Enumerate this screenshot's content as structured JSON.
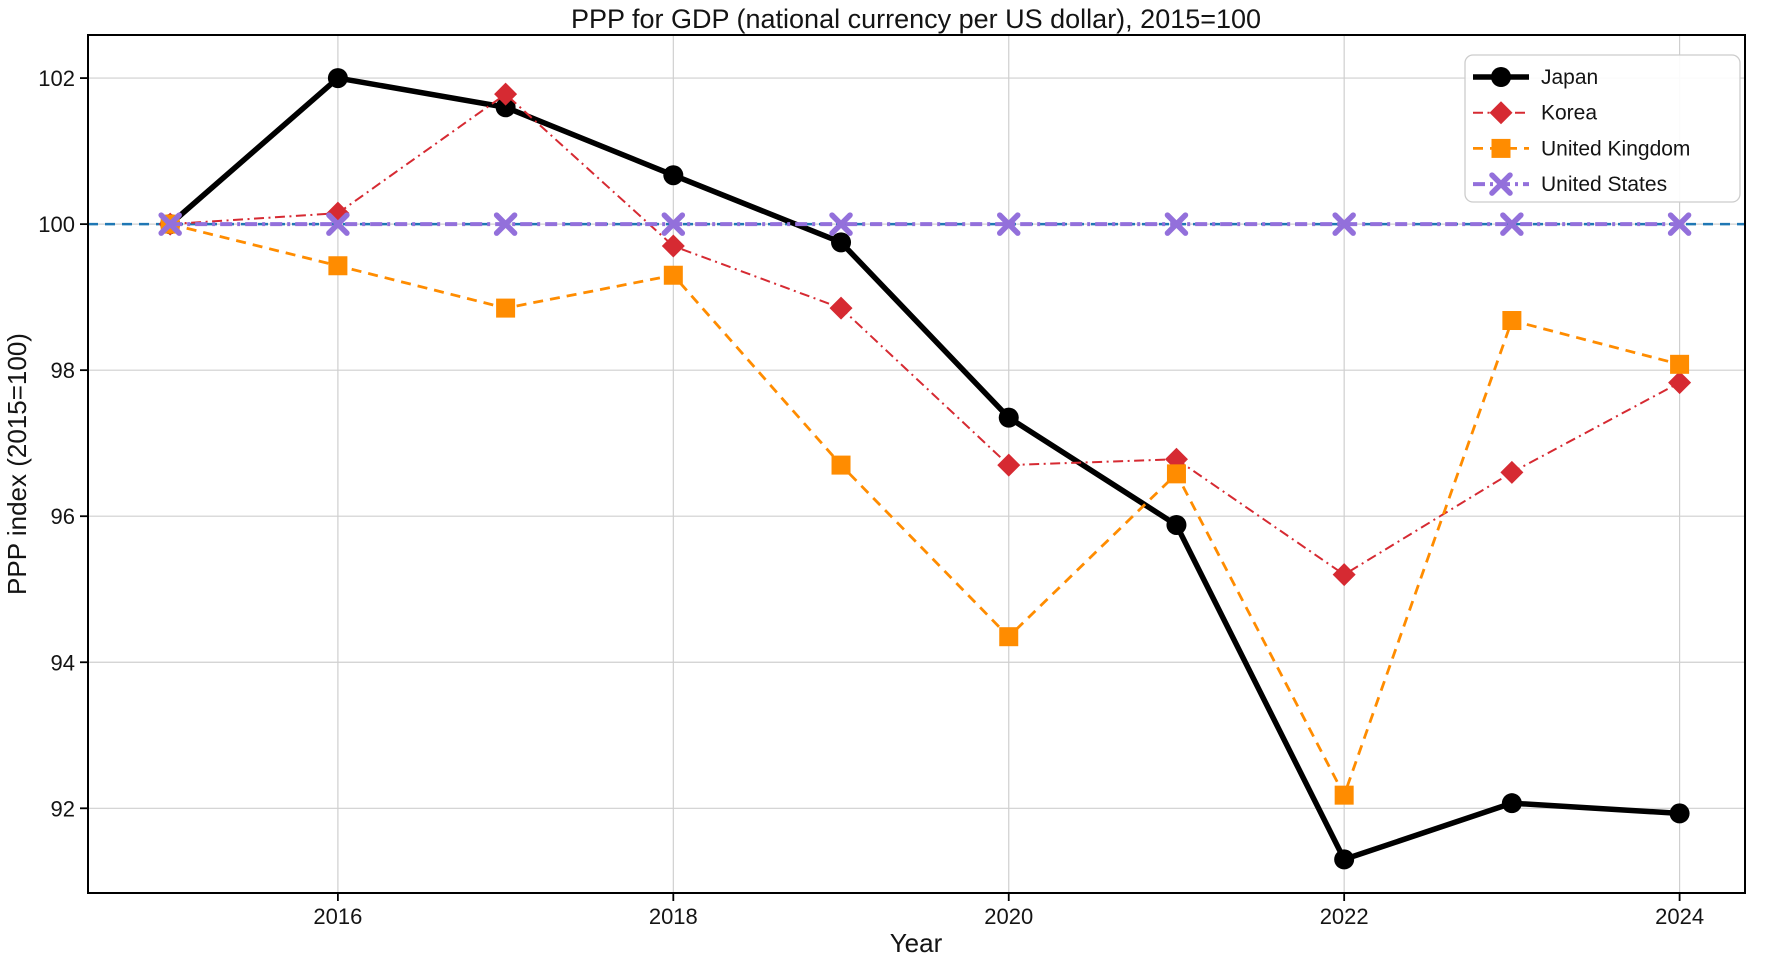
{
  "chart_data": {
    "type": "line",
    "title": "PPP for GDP (national currency per US dollar), 2015=100",
    "xlabel": "Year",
    "ylabel": "PPP index (2015=100)",
    "x": [
      2015,
      2016,
      2017,
      2018,
      2019,
      2020,
      2021,
      2022,
      2023,
      2024
    ],
    "series": [
      {
        "name": "Japan",
        "color": "#000000",
        "linestyle": "solid",
        "linewidth": 5.5,
        "marker": "circle",
        "values": [
          100.0,
          102.0,
          101.6,
          100.67,
          99.75,
          97.35,
          95.88,
          91.3,
          92.07,
          91.93
        ]
      },
      {
        "name": "Korea",
        "color": "#d62a32",
        "linestyle": "dashdot",
        "linewidth": 2,
        "marker": "diamond",
        "values": [
          100.0,
          100.15,
          101.78,
          99.7,
          98.85,
          96.7,
          96.78,
          95.2,
          96.6,
          97.83
        ]
      },
      {
        "name": "United Kingdom",
        "color": "#ff8c00",
        "linestyle": "dashed",
        "linewidth": 2.8,
        "marker": "square",
        "values": [
          100.0,
          99.43,
          98.85,
          99.3,
          96.7,
          94.35,
          96.58,
          92.18,
          98.68,
          98.08
        ]
      },
      {
        "name": "United States",
        "color": "#9370db",
        "linestyle": "dashdot",
        "linewidth": 4,
        "marker": "x",
        "values": [
          100,
          100,
          100,
          100,
          100,
          100,
          100,
          100,
          100,
          100
        ]
      }
    ],
    "reference_line": {
      "y": 100,
      "color": "#1f77b4",
      "linestyle": "dashed",
      "linewidth": 2.4
    },
    "xticks": [
      2016,
      2018,
      2020,
      2022,
      2024
    ],
    "yticks": [
      92,
      94,
      96,
      98,
      100,
      102
    ],
    "xlim": [
      2014.51,
      2024.39
    ],
    "ylim": [
      90.84,
      102.59
    ],
    "grid": true,
    "legend_position": "upper right",
    "grid_color": "#cfcfcf",
    "legend_border_color": "#cccccc"
  }
}
